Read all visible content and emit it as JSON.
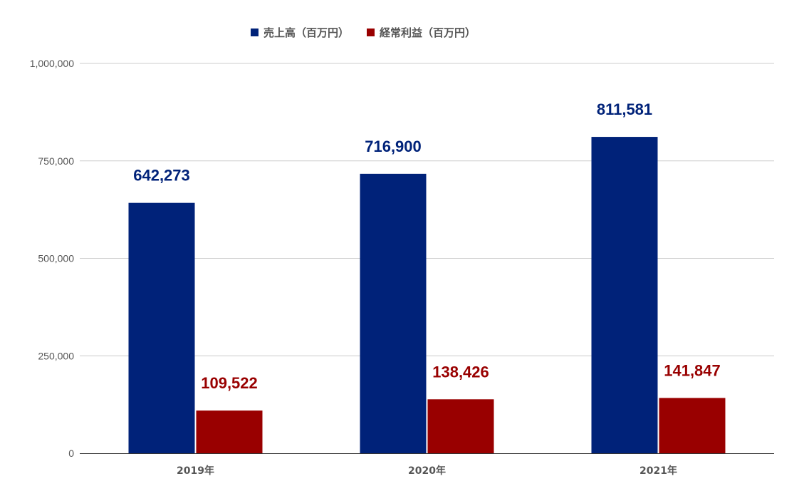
{
  "colors": {
    "series_sales": "#002279",
    "series_profit": "#990000",
    "gridline": "#cccccc",
    "axis": "#333333",
    "text": "#555555"
  },
  "chart_data": {
    "type": "bar",
    "categories": [
      "2019年",
      "2020年",
      "2021年"
    ],
    "series": [
      {
        "name": "売上高（百万円）",
        "values": [
          642273,
          716900,
          811581
        ],
        "labels": [
          "642,273",
          "716,900",
          "811,581"
        ]
      },
      {
        "name": "経常利益（百万円）",
        "values": [
          109522,
          138426,
          141847
        ],
        "labels": [
          "109,522",
          "138,426",
          "141,847"
        ]
      }
    ],
    "ylim": [
      0,
      1000000
    ],
    "yticks": [
      0,
      250000,
      500000,
      750000,
      1000000
    ],
    "ytick_labels": [
      "0",
      "250,000",
      "500,000",
      "750,000",
      "1,000,000"
    ],
    "grid": true,
    "legend_position": "top-center",
    "title": "",
    "xlabel": "",
    "ylabel": ""
  }
}
